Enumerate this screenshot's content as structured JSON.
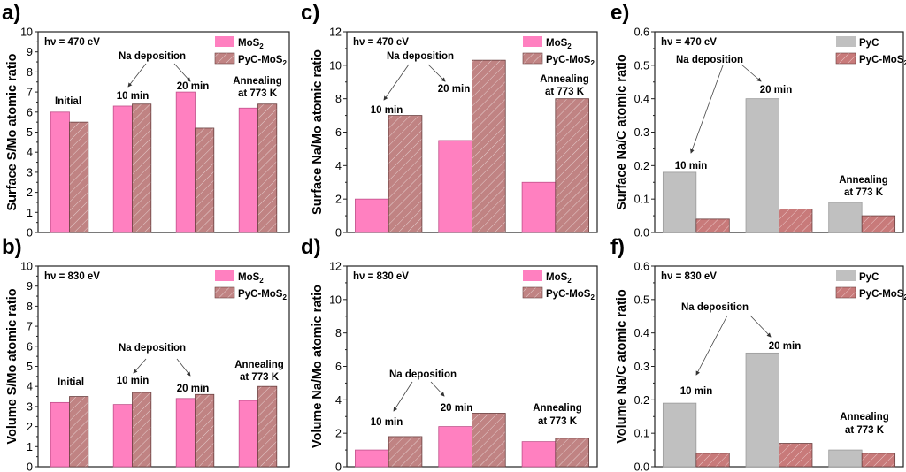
{
  "figure": {
    "colors": {
      "MoS2": "#ff80c0",
      "PyC": "#c0c0c0",
      "PyC-MoS2_brown": "#c08383",
      "PyC-MoS2_red": "#c87a7a",
      "hatch": "#e8d8d8"
    }
  },
  "chart_data": [
    {
      "panel": "a)",
      "type": "bar",
      "ylabel": "Surface S/Mo atomic ratio",
      "ylim": [
        0,
        10
      ],
      "yticks": [
        "0",
        "1",
        "2",
        "3",
        "4",
        "5",
        "6",
        "7",
        "8",
        "9",
        "10"
      ],
      "photon_energy": "hν = 470 eV",
      "categories": [
        "Initial",
        "10 min",
        "20 min",
        "Annealing at 773 K"
      ],
      "series": [
        {
          "name": "MoS2",
          "label": "MoS",
          "sub": "2",
          "values": [
            6.0,
            6.3,
            7.0,
            6.2
          ]
        },
        {
          "name": "PyC-MoS2",
          "label": "PyC-MoS",
          "sub": "2",
          "values": [
            5.5,
            6.4,
            5.2,
            6.4
          ]
        }
      ],
      "annotations": {
        "initial": "Initial",
        "na_dep": "Na deposition",
        "t10": "10 min",
        "t20": "20 min",
        "anneal1": "Annealing",
        "anneal2": "at 773 K"
      },
      "legend": "top-right"
    },
    {
      "panel": "b)",
      "type": "bar",
      "ylabel": "Volume S/Mo atomic ratio",
      "ylim": [
        0,
        10
      ],
      "yticks": [
        "0",
        "1",
        "2",
        "3",
        "4",
        "5",
        "6",
        "7",
        "8",
        "9",
        "10"
      ],
      "photon_energy": "hν = 830 eV",
      "categories": [
        "Initial",
        "10 min",
        "20 min",
        "Annealing at 773 K"
      ],
      "series": [
        {
          "name": "MoS2",
          "label": "MoS",
          "sub": "2",
          "values": [
            3.2,
            3.1,
            3.4,
            3.3
          ]
        },
        {
          "name": "PyC-MoS2",
          "label": "PyC-MoS",
          "sub": "2",
          "values": [
            3.5,
            3.7,
            3.6,
            4.0
          ]
        }
      ],
      "annotations": {
        "initial": "Initial",
        "na_dep": "Na deposition",
        "t10": "10 min",
        "t20": "20 min",
        "anneal1": "Annealing",
        "anneal2": "at 773 K"
      },
      "legend": "top-right"
    },
    {
      "panel": "c)",
      "type": "bar",
      "ylabel": "Surface Na/Mo atomic ratio",
      "ylim": [
        0,
        12
      ],
      "yticks": [
        "0",
        "2",
        "4",
        "6",
        "8",
        "10",
        "12"
      ],
      "photon_energy": "hν = 470 eV",
      "categories": [
        "10 min",
        "20 min",
        "Annealing at 773 K"
      ],
      "series": [
        {
          "name": "MoS2",
          "label": "MoS",
          "sub": "2",
          "values": [
            2.0,
            5.5,
            3.0
          ]
        },
        {
          "name": "PyC-MoS2",
          "label": "PyC-MoS",
          "sub": "2",
          "values": [
            7.0,
            10.3,
            8.0
          ]
        }
      ],
      "annotations": {
        "na_dep": "Na deposition",
        "t10": "10 min",
        "t20": "20 min",
        "anneal1": "Annealing",
        "anneal2": "at 773 K"
      },
      "legend": "top-right"
    },
    {
      "panel": "d)",
      "type": "bar",
      "ylabel": "Volume Na/Mo atomic ratio",
      "ylim": [
        0,
        12
      ],
      "yticks": [
        "0",
        "2",
        "4",
        "6",
        "8",
        "10",
        "12"
      ],
      "photon_energy": "hν = 830 eV",
      "categories": [
        "10 min",
        "20 min",
        "Annealing at 773 K"
      ],
      "series": [
        {
          "name": "MoS2",
          "label": "MoS",
          "sub": "2",
          "values": [
            1.0,
            2.4,
            1.5
          ]
        },
        {
          "name": "PyC-MoS2",
          "label": "PyC-MoS",
          "sub": "2",
          "values": [
            1.8,
            3.2,
            1.7
          ]
        }
      ],
      "annotations": {
        "na_dep": "Na deposition",
        "t10": "10 min",
        "t20": "20 min",
        "anneal1": "Annealing",
        "anneal2": "at 773 K"
      },
      "legend": "top-right"
    },
    {
      "panel": "e)",
      "type": "bar",
      "ylabel": "Surface Na/C atomic ratio",
      "ylim": [
        0,
        0.6
      ],
      "yticks": [
        "0.0",
        "0.1",
        "0.2",
        "0.3",
        "0.4",
        "0.5",
        "0.6"
      ],
      "photon_energy": "hν = 470 eV",
      "categories": [
        "10 min",
        "20 min",
        "Annealing at 773 K"
      ],
      "series": [
        {
          "name": "PyC",
          "label": "PyC",
          "sub": "",
          "values": [
            0.18,
            0.4,
            0.09
          ]
        },
        {
          "name": "PyC-MoS2",
          "label": "PyC-MoS",
          "sub": "2",
          "values": [
            0.04,
            0.07,
            0.05
          ]
        }
      ],
      "annotations": {
        "na_dep": "Na deposition",
        "t10": "10 min",
        "t20": "20 min",
        "anneal1": "Annealing",
        "anneal2": "at 773 K"
      },
      "legend": "top-right"
    },
    {
      "panel": "f)",
      "type": "bar",
      "ylabel": "Volume Na/C atomic ratio",
      "ylim": [
        0,
        0.6
      ],
      "yticks": [
        "0.0",
        "0.1",
        "0.2",
        "0.3",
        "0.4",
        "0.5",
        "0.6"
      ],
      "photon_energy": "hν = 830 eV",
      "categories": [
        "10 min",
        "20 min",
        "Annealing at 773 K"
      ],
      "series": [
        {
          "name": "PyC",
          "label": "PyC",
          "sub": "",
          "values": [
            0.19,
            0.34,
            0.05
          ]
        },
        {
          "name": "PyC-MoS2",
          "label": "PyC-MoS",
          "sub": "2",
          "values": [
            0.04,
            0.07,
            0.04
          ]
        }
      ],
      "annotations": {
        "na_dep": "Na deposition",
        "t10": "10 min",
        "t20": "20 min",
        "anneal1": "Annealing",
        "anneal2": "at 773 K"
      },
      "legend": "top-right"
    }
  ]
}
